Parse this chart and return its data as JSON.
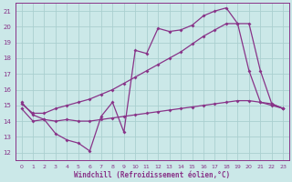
{
  "xlabel": "Windchill (Refroidissement éolien,°C)",
  "background_color": "#cbe8e8",
  "grid_color": "#aacfcf",
  "line_color": "#883388",
  "xlim": [
    -0.5,
    23.5
  ],
  "ylim": [
    11.5,
    21.5
  ],
  "xticks": [
    0,
    1,
    2,
    3,
    4,
    5,
    6,
    7,
    8,
    9,
    10,
    11,
    12,
    13,
    14,
    15,
    16,
    17,
    18,
    19,
    20,
    21,
    22,
    23
  ],
  "yticks": [
    12,
    13,
    14,
    15,
    16,
    17,
    18,
    19,
    20,
    21
  ],
  "line1_x": [
    0,
    1,
    2,
    3,
    4,
    5,
    6,
    7,
    8,
    9,
    10,
    11,
    12,
    13,
    14,
    15,
    16,
    17,
    18,
    19,
    20,
    21,
    22,
    23
  ],
  "line1_y": [
    15.2,
    14.4,
    14.1,
    13.2,
    12.8,
    12.6,
    12.1,
    14.3,
    15.2,
    13.3,
    18.5,
    18.3,
    19.9,
    19.7,
    19.8,
    20.1,
    20.7,
    21.0,
    21.2,
    20.2,
    17.2,
    15.2,
    15.0,
    14.8
  ],
  "line2_x": [
    0,
    1,
    2,
    3,
    4,
    5,
    6,
    7,
    8,
    9,
    10,
    11,
    12,
    13,
    14,
    15,
    16,
    17,
    18,
    19,
    20,
    21,
    22,
    23
  ],
  "line2_y": [
    15.1,
    14.5,
    14.5,
    14.8,
    15.0,
    15.2,
    15.4,
    15.7,
    16.0,
    16.4,
    16.8,
    17.2,
    17.6,
    18.0,
    18.4,
    18.9,
    19.4,
    19.8,
    20.2,
    20.2,
    20.2,
    17.2,
    15.1,
    14.8
  ],
  "line3_x": [
    0,
    1,
    2,
    3,
    4,
    5,
    6,
    7,
    8,
    9,
    10,
    11,
    12,
    13,
    14,
    15,
    16,
    17,
    18,
    19,
    20,
    21,
    22,
    23
  ],
  "line3_y": [
    14.8,
    14.0,
    14.1,
    14.0,
    14.1,
    14.0,
    14.0,
    14.1,
    14.2,
    14.3,
    14.4,
    14.5,
    14.6,
    14.7,
    14.8,
    14.9,
    15.0,
    15.1,
    15.2,
    15.3,
    15.3,
    15.2,
    15.1,
    14.8
  ]
}
